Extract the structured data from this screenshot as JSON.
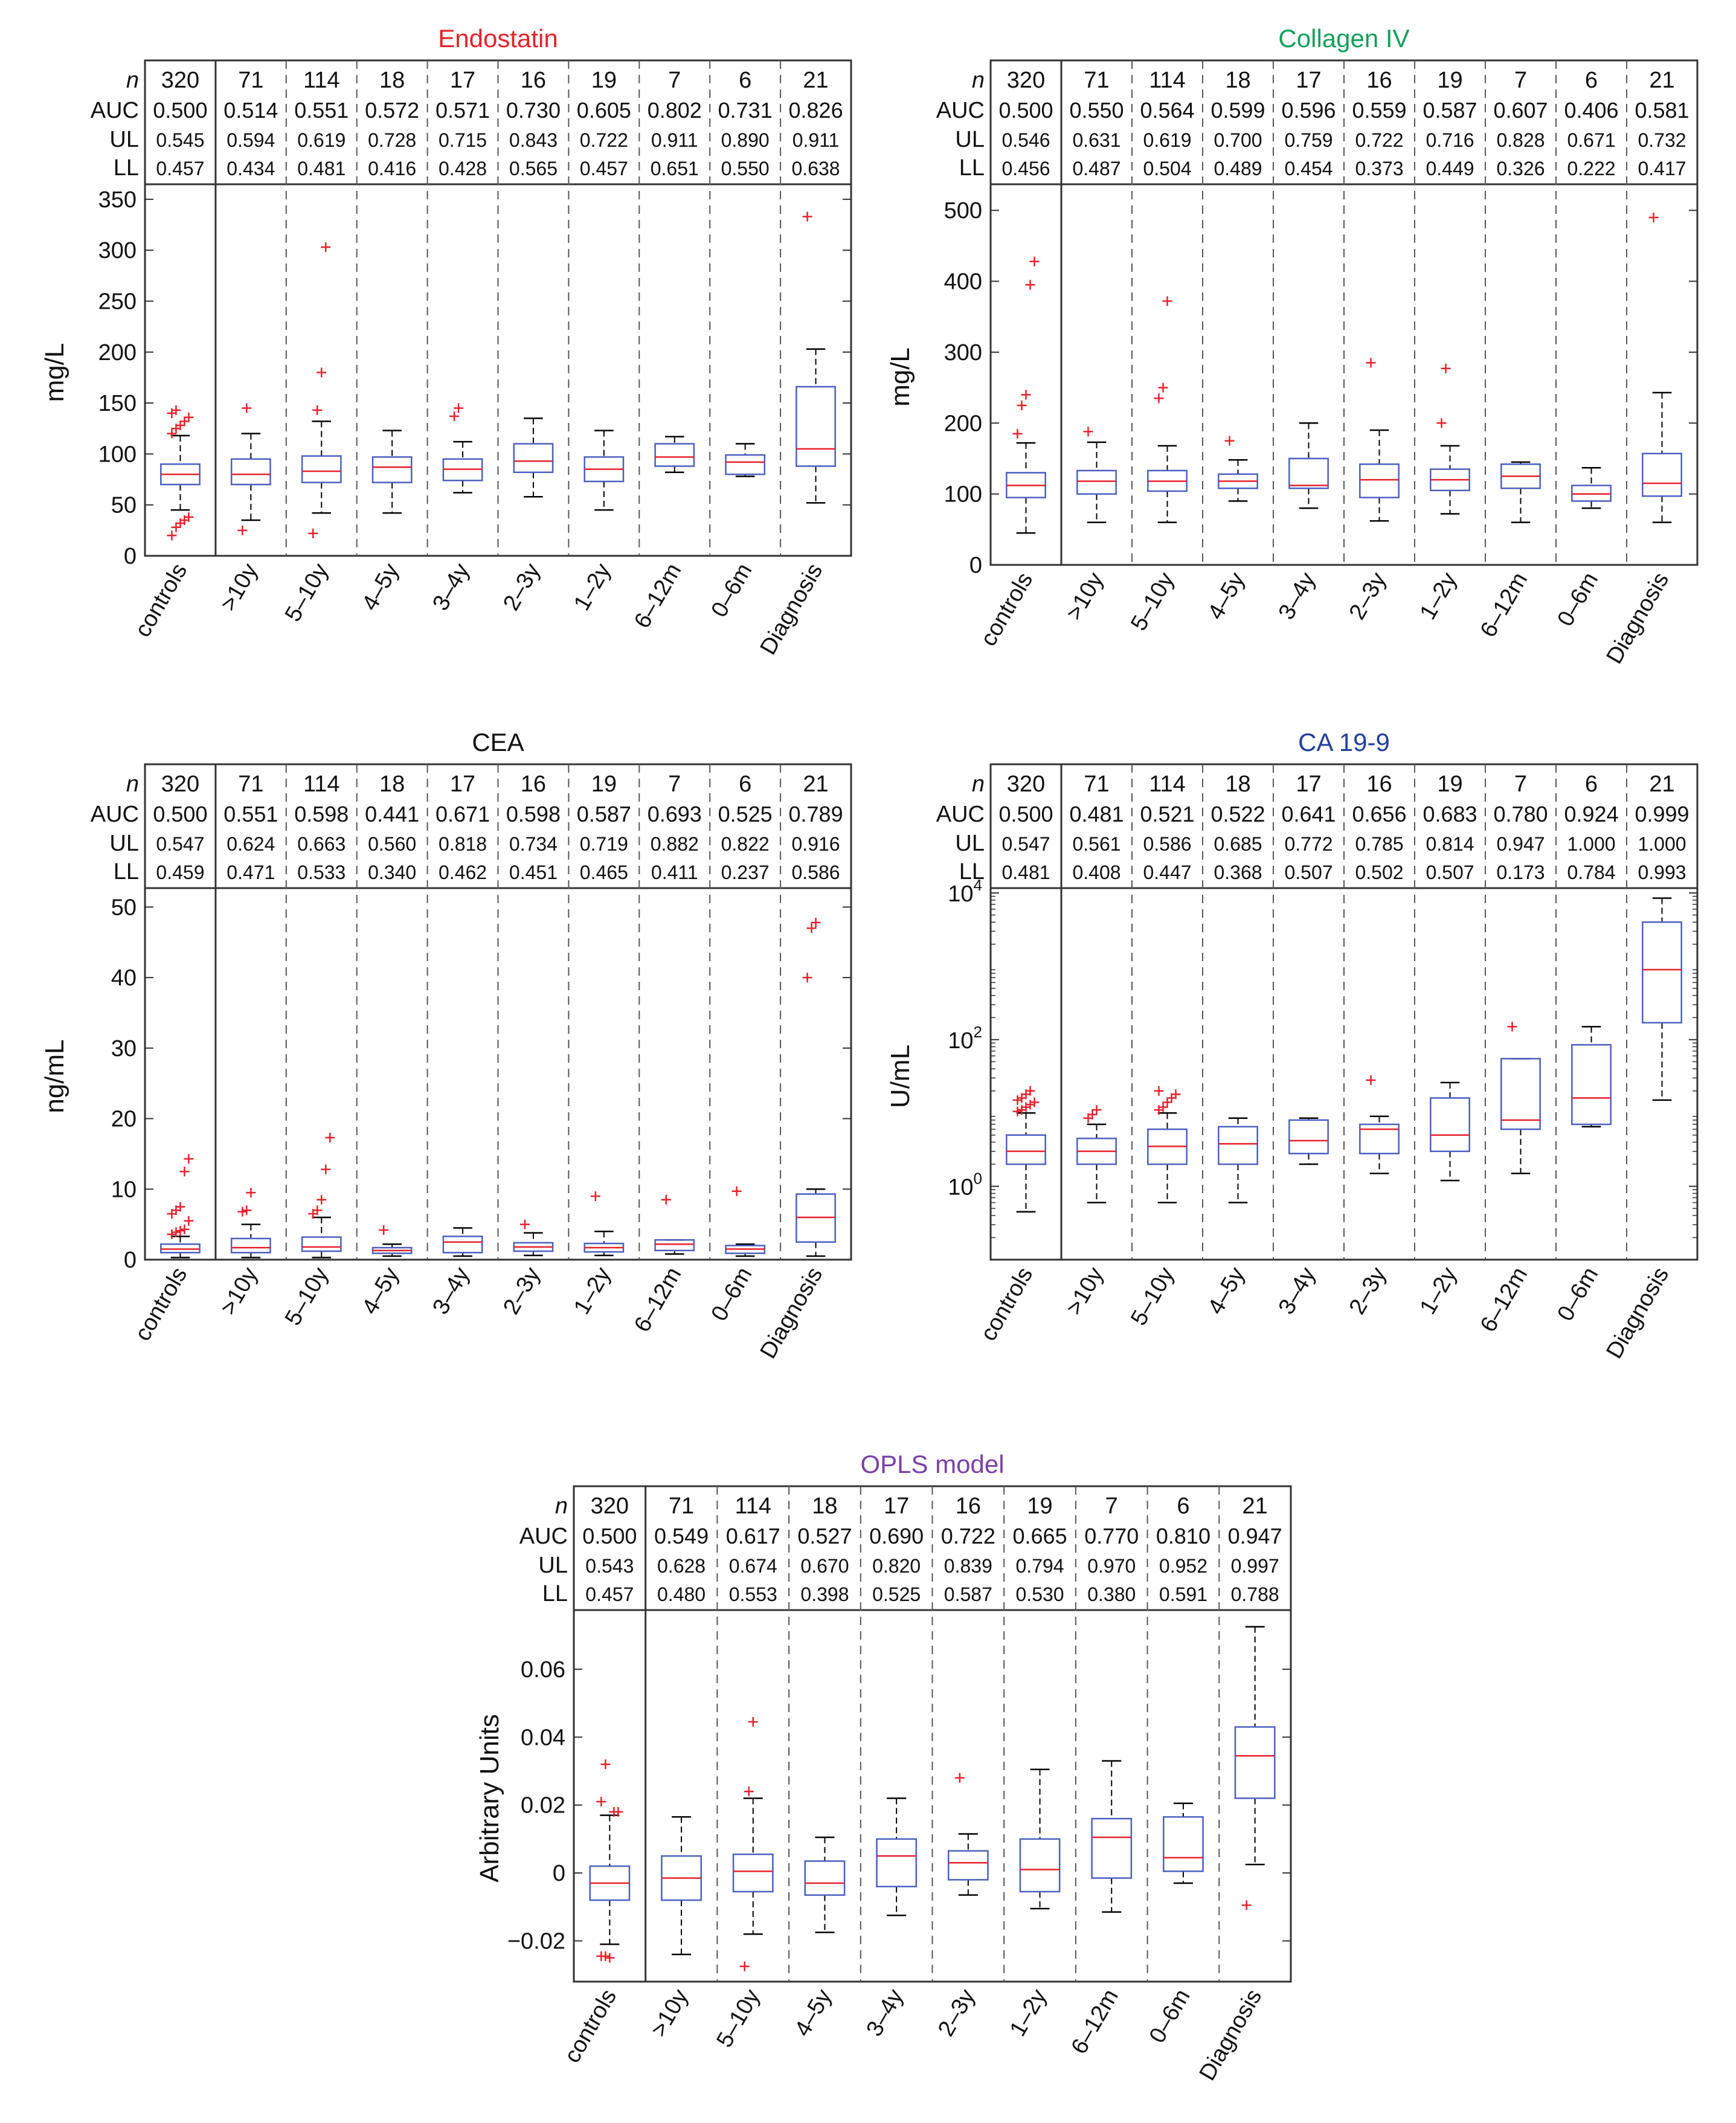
{
  "figure": {
    "categories": [
      "controls",
      ">10y",
      "5–10y",
      "4–5y",
      "3–4y",
      "2–3y",
      "1–2y",
      "6–12m",
      "0–6m",
      "Diagnosis"
    ],
    "row_labels": {
      "n": "n",
      "auc": "AUC",
      "ul": "UL",
      "ll": "LL"
    },
    "colors": {
      "box": "#4a5fc1",
      "median": "#e8202a",
      "outlier": "#e8202a",
      "whisker": "#000000",
      "frame": "#333333"
    }
  },
  "chart_data": [
    {
      "type": "box",
      "title": "Endostatin",
      "title_color": "#e8202a",
      "ylabel": "mg/L",
      "yscale": "linear",
      "ylim": [
        0,
        360
      ],
      "yticks": [
        0,
        50,
        100,
        150,
        200,
        250,
        300,
        350
      ],
      "ytick_labels": [
        "0",
        "50",
        "100",
        "150",
        "200",
        "250",
        "300",
        "350"
      ],
      "table": {
        "n": [
          "320",
          "71",
          "114",
          "18",
          "17",
          "16",
          "19",
          "7",
          "6",
          "21"
        ],
        "auc": [
          "0.500",
          "0.514",
          "0.551",
          "0.572",
          "0.571",
          "0.730",
          "0.605",
          "0.802",
          "0.731",
          "0.826"
        ],
        "ul": [
          "0.545",
          "0.594",
          "0.619",
          "0.728",
          "0.715",
          "0.843",
          "0.722",
          "0.911",
          "0.890",
          "0.911"
        ],
        "ll": [
          "0.457",
          "0.434",
          "0.481",
          "0.416",
          "0.428",
          "0.565",
          "0.457",
          "0.651",
          "0.550",
          "0.638"
        ]
      },
      "boxes": [
        {
          "wlo": 45,
          "q1": 70,
          "med": 80,
          "q3": 90,
          "whi": 118,
          "out": [
            20,
            28,
            32,
            35,
            38,
            120,
            125,
            128,
            132,
            136,
            140,
            143
          ]
        },
        {
          "wlo": 35,
          "q1": 70,
          "med": 80,
          "q3": 95,
          "whi": 120,
          "out": [
            25,
            145
          ]
        },
        {
          "wlo": 42,
          "q1": 72,
          "med": 83,
          "q3": 98,
          "whi": 132,
          "out": [
            22,
            143,
            180,
            303
          ]
        },
        {
          "wlo": 42,
          "q1": 72,
          "med": 87,
          "q3": 97,
          "whi": 123,
          "out": []
        },
        {
          "wlo": 62,
          "q1": 74,
          "med": 85,
          "q3": 95,
          "whi": 112,
          "out": [
            137,
            145
          ]
        },
        {
          "wlo": 58,
          "q1": 82,
          "med": 93,
          "q3": 110,
          "whi": 135,
          "out": []
        },
        {
          "wlo": 45,
          "q1": 73,
          "med": 85,
          "q3": 97,
          "whi": 123,
          "out": []
        },
        {
          "wlo": 82,
          "q1": 88,
          "med": 97,
          "q3": 110,
          "whi": 117,
          "out": []
        },
        {
          "wlo": 78,
          "q1": 80,
          "med": 92,
          "q3": 99,
          "whi": 110,
          "out": []
        },
        {
          "wlo": 52,
          "q1": 88,
          "med": 105,
          "q3": 166,
          "whi": 203,
          "out": [
            333
          ]
        }
      ]
    },
    {
      "type": "box",
      "title": "Collagen IV",
      "title_color": "#12a05a",
      "ylabel": "mg/L",
      "yscale": "linear",
      "ylim": [
        0,
        530
      ],
      "yticks": [
        0,
        100,
        200,
        300,
        400,
        500
      ],
      "ytick_labels": [
        "0",
        "100",
        "200",
        "300",
        "400",
        "500"
      ],
      "table": {
        "n": [
          "320",
          "71",
          "114",
          "18",
          "17",
          "16",
          "19",
          "7",
          "6",
          "21"
        ],
        "auc": [
          "0.500",
          "0.550",
          "0.564",
          "0.599",
          "0.596",
          "0.559",
          "0.587",
          "0.607",
          "0.406",
          "0.581"
        ],
        "ul": [
          "0.546",
          "0.631",
          "0.619",
          "0.700",
          "0.759",
          "0.722",
          "0.716",
          "0.828",
          "0.671",
          "0.732"
        ],
        "ll": [
          "0.456",
          "0.487",
          "0.504",
          "0.489",
          "0.454",
          "0.373",
          "0.449",
          "0.326",
          "0.222",
          "0.417"
        ]
      },
      "boxes": [
        {
          "wlo": 45,
          "q1": 95,
          "med": 112,
          "q3": 130,
          "whi": 172,
          "out": [
            185,
            225,
            240,
            395,
            428
          ]
        },
        {
          "wlo": 60,
          "q1": 100,
          "med": 118,
          "q3": 133,
          "whi": 173,
          "out": [
            188
          ]
        },
        {
          "wlo": 60,
          "q1": 104,
          "med": 118,
          "q3": 133,
          "whi": 168,
          "out": [
            235,
            250,
            372
          ]
        },
        {
          "wlo": 90,
          "q1": 108,
          "med": 118,
          "q3": 128,
          "whi": 148,
          "out": [
            175
          ]
        },
        {
          "wlo": 80,
          "q1": 108,
          "med": 112,
          "q3": 150,
          "whi": 200,
          "out": []
        },
        {
          "wlo": 62,
          "q1": 95,
          "med": 120,
          "q3": 142,
          "whi": 190,
          "out": [
            285
          ]
        },
        {
          "wlo": 72,
          "q1": 105,
          "med": 120,
          "q3": 135,
          "whi": 168,
          "out": [
            200,
            277
          ]
        },
        {
          "wlo": 60,
          "q1": 108,
          "med": 125,
          "q3": 142,
          "whi": 145,
          "out": []
        },
        {
          "wlo": 80,
          "q1": 90,
          "med": 100,
          "q3": 112,
          "whi": 137,
          "out": []
        },
        {
          "wlo": 60,
          "q1": 97,
          "med": 115,
          "q3": 157,
          "whi": 243,
          "out": [
            490
          ]
        }
      ]
    },
    {
      "type": "box",
      "title": "CEA",
      "title_color": "#111111",
      "ylabel": "ng/mL",
      "yscale": "linear",
      "ylim": [
        0,
        52
      ],
      "yticks": [
        0,
        10,
        20,
        30,
        40,
        50
      ],
      "ytick_labels": [
        "0",
        "10",
        "20",
        "30",
        "40",
        "50"
      ],
      "table": {
        "n": [
          "320",
          "71",
          "114",
          "18",
          "17",
          "16",
          "19",
          "7",
          "6",
          "21"
        ],
        "auc": [
          "0.500",
          "0.551",
          "0.598",
          "0.441",
          "0.671",
          "0.598",
          "0.587",
          "0.693",
          "0.525",
          "0.789"
        ],
        "ul": [
          "0.547",
          "0.624",
          "0.663",
          "0.560",
          "0.818",
          "0.734",
          "0.719",
          "0.882",
          "0.822",
          "0.916"
        ],
        "ll": [
          "0.459",
          "0.471",
          "0.533",
          "0.340",
          "0.462",
          "0.451",
          "0.465",
          "0.411",
          "0.237",
          "0.586"
        ]
      },
      "boxes": [
        {
          "wlo": 0.3,
          "q1": 1.0,
          "med": 1.5,
          "q3": 2.2,
          "whi": 3.3,
          "out": [
            3.6,
            3.9,
            4.1,
            4.3,
            5.5,
            6.5,
            7.0,
            7.5,
            12.5,
            14.3
          ]
        },
        {
          "wlo": 0.3,
          "q1": 1.0,
          "med": 1.7,
          "q3": 3.0,
          "whi": 5.0,
          "out": [
            6.8,
            7.0,
            9.5
          ]
        },
        {
          "wlo": 0.3,
          "q1": 1.2,
          "med": 1.8,
          "q3": 3.2,
          "whi": 6.0,
          "out": [
            6.5,
            7.0,
            8.5,
            12.8,
            17.3
          ]
        },
        {
          "wlo": 0.5,
          "q1": 0.9,
          "med": 1.3,
          "q3": 1.7,
          "whi": 2.2,
          "out": [
            4.2
          ]
        },
        {
          "wlo": 0.5,
          "q1": 1.0,
          "med": 2.5,
          "q3": 3.3,
          "whi": 4.5,
          "out": []
        },
        {
          "wlo": 0.6,
          "q1": 1.2,
          "med": 1.8,
          "q3": 2.4,
          "whi": 3.8,
          "out": [
            5.0
          ]
        },
        {
          "wlo": 0.6,
          "q1": 1.1,
          "med": 1.7,
          "q3": 2.3,
          "whi": 4.0,
          "out": [
            9.0
          ]
        },
        {
          "wlo": 0.8,
          "q1": 1.3,
          "med": 2.2,
          "q3": 2.8,
          "whi": 2.8,
          "out": [
            8.5
          ]
        },
        {
          "wlo": 0.5,
          "q1": 0.9,
          "med": 1.5,
          "q3": 2.0,
          "whi": 2.2,
          "out": [
            9.7
          ]
        },
        {
          "wlo": 0.5,
          "q1": 2.5,
          "med": 6.0,
          "q3": 9.3,
          "whi": 10.0,
          "out": [
            40.0,
            47.0,
            47.8
          ]
        }
      ]
    },
    {
      "type": "box",
      "title": "CA 19-9",
      "title_color": "#1f3f9c",
      "ylabel": "U/mL",
      "yscale": "log",
      "ylim": [
        0.1,
        10000
      ],
      "yticks": [
        1,
        100,
        10000
      ],
      "ytick_labels": [
        "10^0",
        "10^2",
        "10^4"
      ],
      "table": {
        "n": [
          "320",
          "71",
          "114",
          "18",
          "17",
          "16",
          "19",
          "7",
          "6",
          "21"
        ],
        "auc": [
          "0.500",
          "0.481",
          "0.521",
          "0.522",
          "0.641",
          "0.656",
          "0.683",
          "0.780",
          "0.924",
          "0.999"
        ],
        "ul": [
          "0.547",
          "0.561",
          "0.586",
          "0.685",
          "0.772",
          "0.785",
          "0.814",
          "0.947",
          "1.000",
          "1.000"
        ],
        "ll": [
          "0.481",
          "0.408",
          "0.447",
          "0.368",
          "0.507",
          "0.502",
          "0.507",
          "0.173",
          "0.784",
          "0.993"
        ]
      },
      "boxes": [
        {
          "wlo": 0.45,
          "q1": 2.0,
          "med": 3.0,
          "q3": 5.0,
          "whi": 10,
          "out": [
            10.5,
            11,
            12,
            13,
            14,
            15,
            16,
            18,
            20
          ]
        },
        {
          "wlo": 0.6,
          "q1": 2.0,
          "med": 3.0,
          "q3": 4.5,
          "whi": 7.0,
          "out": [
            8.5,
            9.5,
            11
          ]
        },
        {
          "wlo": 0.6,
          "q1": 2.0,
          "med": 3.5,
          "q3": 6.0,
          "whi": 10,
          "out": [
            11,
            12,
            14,
            16,
            18,
            20
          ]
        },
        {
          "wlo": 0.6,
          "q1": 2.0,
          "med": 3.8,
          "q3": 6.5,
          "whi": 8.5,
          "out": []
        },
        {
          "wlo": 2.0,
          "q1": 2.8,
          "med": 4.2,
          "q3": 8.0,
          "whi": 8.5,
          "out": []
        },
        {
          "wlo": 1.5,
          "q1": 2.8,
          "med": 6.0,
          "q3": 7.0,
          "whi": 9.0,
          "out": [
            28
          ]
        },
        {
          "wlo": 1.2,
          "q1": 3.0,
          "med": 5.0,
          "q3": 16,
          "whi": 26,
          "out": []
        },
        {
          "wlo": 1.5,
          "q1": 6.0,
          "med": 8.0,
          "q3": 55,
          "whi": 55,
          "out": [
            150
          ]
        },
        {
          "wlo": 6.5,
          "q1": 7.0,
          "med": 16,
          "q3": 85,
          "whi": 150,
          "out": []
        },
        {
          "wlo": 15,
          "q1": 170,
          "med": 900,
          "q3": 4000,
          "whi": 8500,
          "out": []
        }
      ]
    },
    {
      "type": "box",
      "title": "OPLS model",
      "title_color": "#7b3fa8",
      "ylabel": "Arbitrary Units",
      "yscale": "linear",
      "ylim": [
        -0.032,
        0.076
      ],
      "yticks": [
        -0.02,
        0,
        0.02,
        0.04,
        0.06
      ],
      "ytick_labels": [
        "−0.02",
        "0",
        "0.02",
        "0.04",
        "0.06"
      ],
      "table": {
        "n": [
          "320",
          "71",
          "114",
          "18",
          "17",
          "16",
          "19",
          "7",
          "6",
          "21"
        ],
        "auc": [
          "0.500",
          "0.549",
          "0.617",
          "0.527",
          "0.690",
          "0.722",
          "0.665",
          "0.770",
          "0.810",
          "0.947"
        ],
        "ul": [
          "0.543",
          "0.628",
          "0.674",
          "0.670",
          "0.820",
          "0.839",
          "0.794",
          "0.970",
          "0.952",
          "0.997"
        ],
        "ll": [
          "0.457",
          "0.480",
          "0.553",
          "0.398",
          "0.525",
          "0.587",
          "0.530",
          "0.380",
          "0.591",
          "0.788"
        ]
      },
      "boxes": [
        {
          "wlo": -0.021,
          "q1": -0.008,
          "med": -0.003,
          "q3": 0.002,
          "whi": 0.017,
          "out": [
            -0.0245,
            -0.0245,
            -0.025,
            0.018,
            0.018,
            0.021,
            0.032
          ]
        },
        {
          "wlo": -0.024,
          "q1": -0.008,
          "med": -0.0015,
          "q3": 0.005,
          "whi": 0.0165,
          "out": []
        },
        {
          "wlo": -0.018,
          "q1": -0.0055,
          "med": 0.0005,
          "q3": 0.0055,
          "whi": 0.022,
          "out": [
            -0.0275,
            0.024,
            0.0445
          ]
        },
        {
          "wlo": -0.0175,
          "q1": -0.0065,
          "med": -0.003,
          "q3": 0.0035,
          "whi": 0.0105,
          "out": []
        },
        {
          "wlo": -0.0125,
          "q1": -0.004,
          "med": 0.005,
          "q3": 0.01,
          "whi": 0.022,
          "out": []
        },
        {
          "wlo": -0.0065,
          "q1": -0.002,
          "med": 0.003,
          "q3": 0.0065,
          "whi": 0.0115,
          "out": [
            0.028
          ]
        },
        {
          "wlo": -0.0105,
          "q1": -0.0055,
          "med": 0.001,
          "q3": 0.01,
          "whi": 0.0305,
          "out": []
        },
        {
          "wlo": -0.0115,
          "q1": -0.0015,
          "med": 0.0105,
          "q3": 0.016,
          "whi": 0.033,
          "out": []
        },
        {
          "wlo": -0.003,
          "q1": 0.0005,
          "med": 0.0045,
          "q3": 0.0165,
          "whi": 0.0205,
          "out": []
        },
        {
          "wlo": 0.0025,
          "q1": 0.022,
          "med": 0.0345,
          "q3": 0.043,
          "whi": 0.0725,
          "out": [
            -0.0095
          ]
        }
      ]
    }
  ]
}
